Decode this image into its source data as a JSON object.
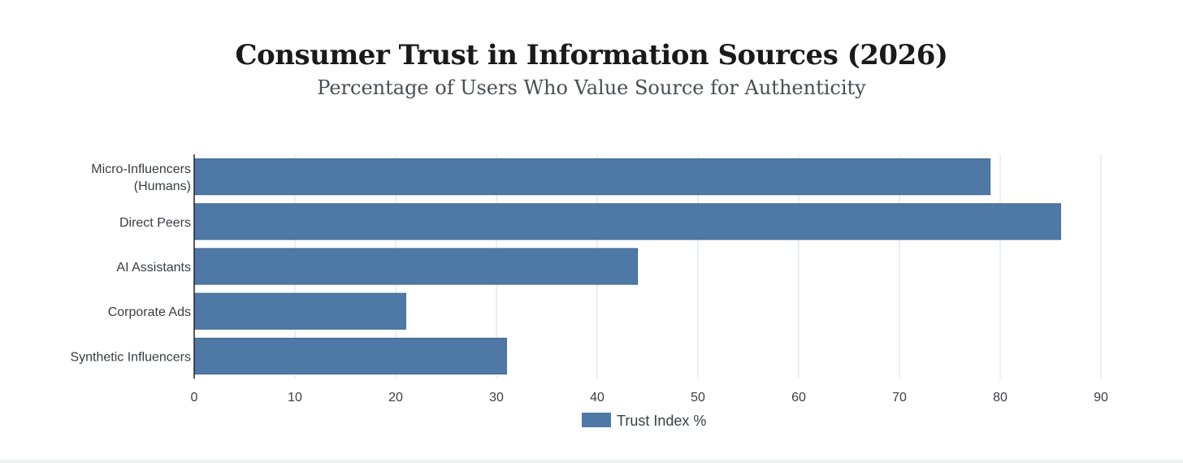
{
  "chart_data": {
    "type": "bar",
    "orientation": "horizontal",
    "title": "Consumer Trust in Information Sources (2026)",
    "subtitle": "Percentage of Users Who Value Source for Authenticity",
    "categories": [
      [
        "Micro-Influencers",
        "(Humans)"
      ],
      [
        "Direct Peers"
      ],
      [
        "AI Assistants"
      ],
      [
        "Corporate Ads"
      ],
      [
        "Synthetic Influencers"
      ]
    ],
    "series": [
      {
        "name": "Trust Index %",
        "values": [
          79,
          86,
          44,
          21,
          31
        ],
        "color": "#4e79a7"
      }
    ],
    "xlim": [
      0,
      90
    ],
    "xticks": [
      0,
      10,
      20,
      30,
      40,
      50,
      60,
      70,
      80,
      90
    ],
    "grid": true,
    "legend_position": "bottom"
  }
}
